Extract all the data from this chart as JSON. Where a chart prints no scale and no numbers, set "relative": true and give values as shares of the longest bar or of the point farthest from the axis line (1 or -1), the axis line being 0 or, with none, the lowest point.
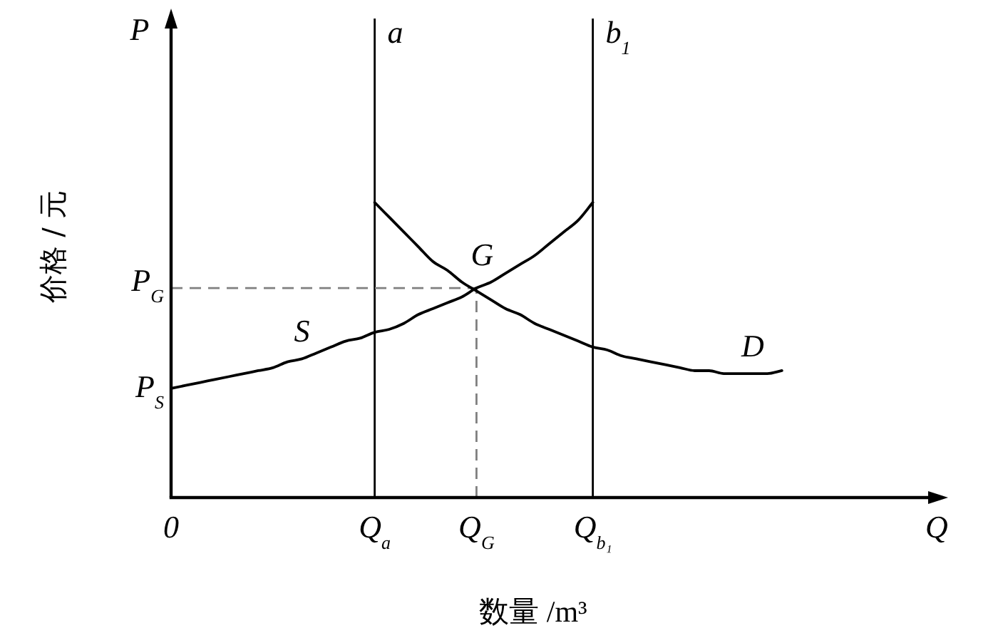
{
  "chart_data": {
    "type": "line",
    "relative": true,
    "xlabel": "数量 /m³",
    "ylabel": "价格 / 元",
    "categories": [
      "0",
      null,
      null,
      null,
      null,
      null,
      null,
      null,
      null,
      null,
      null,
      null,
      null,
      null,
      "Q$_{a}$",
      null,
      null,
      null,
      null,
      null,
      null,
      "Q$_{G}$",
      null,
      null,
      null,
      null,
      null,
      null,
      null,
      "Q$_{b₁}$",
      null,
      null,
      null,
      null,
      null,
      null,
      null,
      null,
      null,
      null,
      null,
      null,
      null
    ],
    "series": [
      {
        "name": "S",
        "color": "#000000",
        "values": [
          0.37,
          0.38,
          0.39,
          0.4,
          0.41,
          0.42,
          0.43,
          0.44,
          0.46,
          0.47,
          0.49,
          0.51,
          0.53,
          0.54,
          0.56,
          0.57,
          0.59,
          0.62,
          0.64,
          0.66,
          0.68,
          0.71,
          0.73,
          0.76,
          0.79,
          0.82,
          0.86,
          0.9,
          0.94,
          1.0,
          null,
          null,
          null,
          null,
          null,
          null,
          null,
          null,
          null,
          null,
          null,
          null,
          null
        ]
      },
      {
        "name": "D",
        "color": "#000000",
        "values": [
          null,
          null,
          null,
          null,
          null,
          null,
          null,
          null,
          null,
          null,
          null,
          null,
          null,
          null,
          1.0,
          0.95,
          0.9,
          0.85,
          0.8,
          0.77,
          0.73,
          0.7,
          0.67,
          0.64,
          0.62,
          0.59,
          0.57,
          0.55,
          0.53,
          0.51,
          0.5,
          0.48,
          0.47,
          0.46,
          0.45,
          0.44,
          0.43,
          0.43,
          0.42,
          0.42,
          0.42,
          0.42,
          0.43
        ]
      }
    ],
    "ref_lines": [
      {
        "axis": "x",
        "value": "Q$_{a}$",
        "label": "a",
        "color": "#000000"
      },
      {
        "axis": "x",
        "value": "Q$_{b₁}$",
        "label": "b$_{1}$",
        "color": "#000000"
      },
      {
        "axis": "x",
        "value": "Q$_{G}$",
        "line_style": "dashed",
        "color": "#808080"
      },
      {
        "axis": "y",
        "value": 0.71,
        "label": "P$_{G}$",
        "line_style": "dashed",
        "color": "#808080"
      }
    ],
    "annotations": [
      "P",
      "Q",
      {
        "text": "P$_{S}$",
        "x": "0",
        "y": 0.37
      },
      {
        "text": "G",
        "x": "Q$_{G}$",
        "y": 0.71
      }
    ]
  }
}
